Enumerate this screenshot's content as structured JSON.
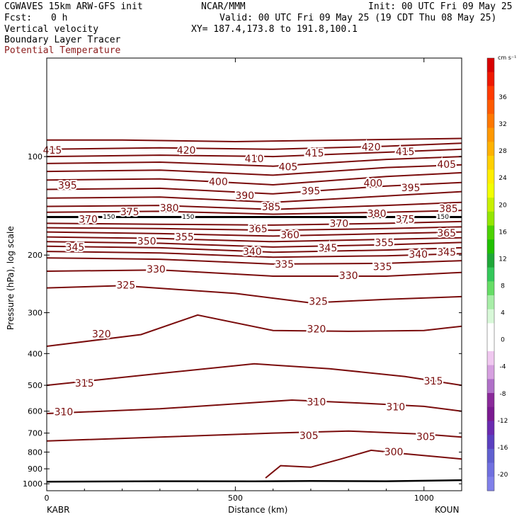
{
  "header": {
    "model": "CGWAVES 15km ARW-GFS init",
    "org": "NCAR/MMM",
    "init": "Init: 00 UTC Fri 09 May 25",
    "fcst_label": "Fcst:",
    "fcst_value": "0 h",
    "valid": "Valid: 00 UTC Fri 09 May 25 (19 CDT Thu 08 May 25)",
    "field1": "Vertical velocity",
    "xy": "XY= 187.4,173.8 to 191.8,100.1",
    "field2": "Boundary Layer Tracer",
    "field3": "Potential Temperature",
    "field3_color": "#8b1a1a"
  },
  "axes": {
    "ylabel": "Pressure (hPa), log scale",
    "xlabel": "Distance (km)",
    "left_station": "KABR",
    "right_station": "KOUN"
  },
  "colorbar": {
    "unit": "cm s⁻¹",
    "labels": [
      "36",
      "32",
      "28",
      "24",
      "20",
      "16",
      "12",
      "8",
      "4",
      "0",
      "-4",
      "-8",
      "-12",
      "-16",
      "-20"
    ]
  },
  "chart_data": {
    "type": "contour",
    "xlim": [
      0,
      1100
    ],
    "ylim_hpa": [
      1050,
      50
    ],
    "x_ticks": [
      0,
      500,
      1000
    ],
    "y_ticks": [
      100,
      200,
      300,
      400,
      500,
      600,
      700,
      800,
      900,
      1000
    ],
    "colorbar_colors": [
      "#d80000",
      "#ee1800",
      "#ff3a00",
      "#ff5a00",
      "#ff7800",
      "#ff9800",
      "#ffb200",
      "#ffd000",
      "#ffee00",
      "#f2ff00",
      "#c8f000",
      "#94e600",
      "#4cd200",
      "#20c000",
      "#1fa838",
      "#34c85a",
      "#66dd66",
      "#a8eea8",
      "#d8f8d8",
      "#ffffff",
      "#ffffff",
      "#f0c8f0",
      "#d6a0e0",
      "#b070c8",
      "#8a2a9a",
      "#7a1a90",
      "#6a2ab0",
      "#5a40c0",
      "#6060d0",
      "#7070e0",
      "#8080ea"
    ],
    "contour_labels": [
      {
        "v": "415",
        "x": 15,
        "p": 96
      },
      {
        "v": "420",
        "x": 370,
        "p": 96
      },
      {
        "v": "410",
        "x": 550,
        "p": 102
      },
      {
        "v": "405",
        "x": 640,
        "p": 108
      },
      {
        "v": "415",
        "x": 710,
        "p": 98
      },
      {
        "v": "420",
        "x": 860,
        "p": 94
      },
      {
        "v": "415",
        "x": 950,
        "p": 97
      },
      {
        "v": "405",
        "x": 1060,
        "p": 106
      },
      {
        "v": "395",
        "x": 55,
        "p": 123
      },
      {
        "v": "400",
        "x": 455,
        "p": 120
      },
      {
        "v": "390",
        "x": 525,
        "p": 132
      },
      {
        "v": "395",
        "x": 700,
        "p": 128
      },
      {
        "v": "400",
        "x": 865,
        "p": 121
      },
      {
        "v": "395",
        "x": 965,
        "p": 125
      },
      {
        "v": "385",
        "x": 595,
        "p": 143
      },
      {
        "v": "375",
        "x": 220,
        "p": 148
      },
      {
        "v": "380",
        "x": 325,
        "p": 144
      },
      {
        "v": "380",
        "x": 875,
        "p": 150
      },
      {
        "v": "385",
        "x": 1065,
        "p": 145
      },
      {
        "v": "370",
        "x": 110,
        "p": 156
      },
      {
        "v": "370",
        "x": 775,
        "p": 161
      },
      {
        "v": "375",
        "x": 950,
        "p": 156
      },
      {
        "v": "365",
        "x": 560,
        "p": 167
      },
      {
        "v": "360",
        "x": 645,
        "p": 174
      },
      {
        "v": "365",
        "x": 1060,
        "p": 172
      },
      {
        "v": "345",
        "x": 75,
        "p": 190
      },
      {
        "v": "350",
        "x": 265,
        "p": 182
      },
      {
        "v": "355",
        "x": 365,
        "p": 177
      },
      {
        "v": "340",
        "x": 545,
        "p": 196
      },
      {
        "v": "345",
        "x": 745,
        "p": 191
      },
      {
        "v": "355",
        "x": 895,
        "p": 184
      },
      {
        "v": "340",
        "x": 985,
        "p": 200
      },
      {
        "v": "345",
        "x": 1060,
        "p": 197
      },
      {
        "v": "335",
        "x": 630,
        "p": 214
      },
      {
        "v": "335",
        "x": 890,
        "p": 218
      },
      {
        "v": "330",
        "x": 290,
        "p": 222
      },
      {
        "v": "330",
        "x": 800,
        "p": 232
      },
      {
        "v": "325",
        "x": 210,
        "p": 248
      },
      {
        "v": "325",
        "x": 720,
        "p": 278
      },
      {
        "v": "320",
        "x": 145,
        "p": 350
      },
      {
        "v": "320",
        "x": 715,
        "p": 338
      },
      {
        "v": "315",
        "x": 100,
        "p": 495
      },
      {
        "v": "315",
        "x": 1025,
        "p": 487
      },
      {
        "v": "310",
        "x": 45,
        "p": 605
      },
      {
        "v": "310",
        "x": 715,
        "p": 565
      },
      {
        "v": "310",
        "x": 925,
        "p": 585
      },
      {
        "v": "305",
        "x": 695,
        "p": 715
      },
      {
        "v": "305",
        "x": 1005,
        "p": 720
      },
      {
        "v": "300",
        "x": 920,
        "p": 802
      },
      {
        "v": "150",
        "x": 165,
        "p": 153
      },
      {
        "v": "150",
        "x": 375,
        "p": 153
      },
      {
        "v": "150",
        "x": 1050,
        "p": 153
      }
    ],
    "isentropes": [
      {
        "theta": 420,
        "pts": [
          [
            0,
            89
          ],
          [
            200,
            89
          ],
          [
            500,
            90
          ],
          [
            800,
            89
          ],
          [
            1100,
            88
          ]
        ]
      },
      {
        "theta": 415,
        "pts": [
          [
            0,
            95
          ],
          [
            300,
            94
          ],
          [
            600,
            95
          ],
          [
            900,
            93
          ],
          [
            1100,
            91
          ]
        ]
      },
      {
        "theta": 410,
        "pts": [
          [
            0,
            100
          ],
          [
            300,
            99
          ],
          [
            600,
            100
          ],
          [
            900,
            97
          ],
          [
            1100,
            95
          ]
        ]
      },
      {
        "theta": 405,
        "pts": [
          [
            0,
            105
          ],
          [
            300,
            104
          ],
          [
            600,
            107
          ],
          [
            900,
            102
          ],
          [
            1100,
            100
          ]
        ]
      },
      {
        "theta": 400,
        "pts": [
          [
            0,
            111
          ],
          [
            300,
            110
          ],
          [
            600,
            114
          ],
          [
            900,
            108
          ],
          [
            1100,
            106
          ]
        ]
      },
      {
        "theta": 395,
        "pts": [
          [
            0,
            118
          ],
          [
            300,
            117
          ],
          [
            600,
            122
          ],
          [
            900,
            115
          ],
          [
            1100,
            112
          ]
        ]
      },
      {
        "theta": 390,
        "pts": [
          [
            0,
            126
          ],
          [
            300,
            125
          ],
          [
            600,
            130
          ],
          [
            900,
            123
          ],
          [
            1100,
            120
          ]
        ]
      },
      {
        "theta": 385,
        "pts": [
          [
            0,
            134
          ],
          [
            300,
            133
          ],
          [
            600,
            138
          ],
          [
            900,
            132
          ],
          [
            1100,
            128
          ]
        ]
      },
      {
        "theta": 380,
        "pts": [
          [
            0,
            142
          ],
          [
            300,
            141
          ],
          [
            600,
            145
          ],
          [
            900,
            141
          ],
          [
            1100,
            138
          ]
        ]
      },
      {
        "theta": 375,
        "pts": [
          [
            0,
            148
          ],
          [
            300,
            147
          ],
          [
            600,
            150
          ],
          [
            900,
            148
          ],
          [
            1100,
            146
          ]
        ]
      },
      {
        "theta": 370,
        "pts": [
          [
            0,
            160
          ],
          [
            300,
            161
          ],
          [
            600,
            162
          ],
          [
            900,
            160
          ],
          [
            1100,
            158
          ]
        ]
      },
      {
        "theta": 365,
        "pts": [
          [
            0,
            165
          ],
          [
            300,
            166
          ],
          [
            600,
            168
          ],
          [
            900,
            166
          ],
          [
            1100,
            164
          ]
        ]
      },
      {
        "theta": 360,
        "pts": [
          [
            0,
            170
          ],
          [
            300,
            172
          ],
          [
            600,
            175
          ],
          [
            900,
            172
          ],
          [
            1100,
            170
          ]
        ]
      },
      {
        "theta": 355,
        "pts": [
          [
            0,
            176
          ],
          [
            300,
            178
          ],
          [
            600,
            182
          ],
          [
            900,
            179
          ],
          [
            1100,
            177
          ]
        ]
      },
      {
        "theta": 350,
        "pts": [
          [
            0,
            182
          ],
          [
            300,
            184
          ],
          [
            600,
            189
          ],
          [
            900,
            186
          ],
          [
            1100,
            183
          ]
        ]
      },
      {
        "theta": 345,
        "pts": [
          [
            0,
            188
          ],
          [
            300,
            190
          ],
          [
            600,
            196
          ],
          [
            900,
            193
          ],
          [
            1100,
            190
          ]
        ]
      },
      {
        "theta": 340,
        "pts": [
          [
            0,
            195
          ],
          [
            300,
            197
          ],
          [
            600,
            203
          ],
          [
            900,
            201
          ],
          [
            1100,
            198
          ]
        ]
      },
      {
        "theta": 335,
        "pts": [
          [
            0,
            204
          ],
          [
            300,
            206
          ],
          [
            600,
            213
          ],
          [
            900,
            212
          ],
          [
            1100,
            208
          ]
        ]
      },
      {
        "theta": 330,
        "pts": [
          [
            0,
            224
          ],
          [
            300,
            222
          ],
          [
            600,
            232
          ],
          [
            900,
            232
          ],
          [
            1100,
            226
          ]
        ]
      },
      {
        "theta": 325,
        "pts": [
          [
            0,
            252
          ],
          [
            200,
            248
          ],
          [
            500,
            262
          ],
          [
            700,
            280
          ],
          [
            900,
            273
          ],
          [
            1100,
            268
          ]
        ]
      },
      {
        "theta": 320,
        "pts": [
          [
            0,
            380
          ],
          [
            250,
            350
          ],
          [
            400,
            305
          ],
          [
            600,
            340
          ],
          [
            800,
            342
          ],
          [
            1000,
            340
          ],
          [
            1100,
            330
          ]
        ]
      },
      {
        "theta": 315,
        "pts": [
          [
            0,
            500
          ],
          [
            300,
            460
          ],
          [
            550,
            430
          ],
          [
            750,
            445
          ],
          [
            950,
            470
          ],
          [
            1100,
            500
          ]
        ]
      },
      {
        "theta": 310,
        "pts": [
          [
            0,
            610
          ],
          [
            300,
            590
          ],
          [
            650,
            555
          ],
          [
            850,
            568
          ],
          [
            1000,
            580
          ],
          [
            1100,
            600
          ]
        ]
      },
      {
        "theta": 305,
        "pts": [
          [
            0,
            740
          ],
          [
            300,
            720
          ],
          [
            600,
            700
          ],
          [
            800,
            690
          ],
          [
            1000,
            705
          ],
          [
            1100,
            720
          ]
        ]
      },
      {
        "theta": 300,
        "pts": [
          [
            580,
            960
          ],
          [
            620,
            880
          ],
          [
            700,
            890
          ],
          [
            780,
            840
          ],
          [
            860,
            790
          ],
          [
            950,
            810
          ],
          [
            1050,
            830
          ],
          [
            1100,
            840
          ]
        ]
      }
    ],
    "ground": [
      [
        0,
        985
      ],
      [
        300,
        982
      ],
      [
        550,
        983
      ],
      [
        700,
        980
      ],
      [
        900,
        982
      ],
      [
        1100,
        975
      ]
    ]
  }
}
